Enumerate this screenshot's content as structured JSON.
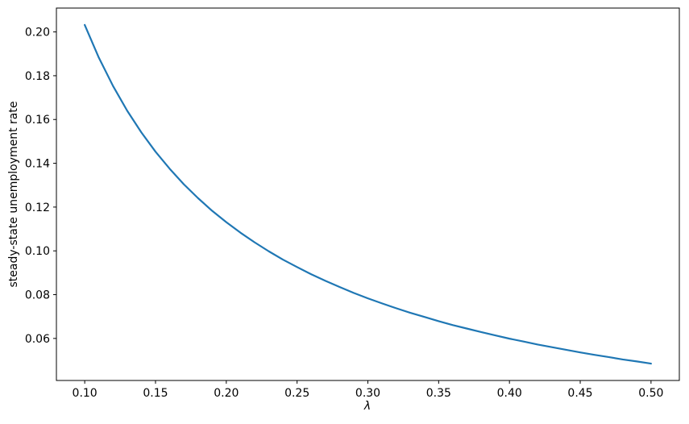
{
  "chart_data": {
    "type": "line",
    "title": "",
    "xlabel": "λ",
    "ylabel": "steady-state unemployment rate",
    "xlim": [
      0.08,
      0.52
    ],
    "ylim": [
      0.0408,
      0.2109
    ],
    "grid": false,
    "legend": "none",
    "background_color": "#ffffff",
    "axis_color": "#000000",
    "xticks": [
      0.1,
      0.15,
      0.2,
      0.25,
      0.3,
      0.35,
      0.4,
      0.45,
      0.5
    ],
    "xtick_labels": [
      "0.10",
      "0.15",
      "0.20",
      "0.25",
      "0.30",
      "0.35",
      "0.40",
      "0.45",
      "0.50"
    ],
    "yticks": [
      0.06,
      0.08,
      0.1,
      0.12,
      0.14,
      0.16,
      0.18,
      0.2
    ],
    "ytick_labels": [
      "0.06",
      "0.08",
      "0.10",
      "0.12",
      "0.14",
      "0.16",
      "0.18",
      "0.20"
    ],
    "x": [
      0.1,
      0.11,
      0.12,
      0.13,
      0.14,
      0.15,
      0.16,
      0.17,
      0.18,
      0.19,
      0.2,
      0.21,
      0.22,
      0.23,
      0.24,
      0.25,
      0.26,
      0.27,
      0.28,
      0.29,
      0.3,
      0.31,
      0.32,
      0.33,
      0.34,
      0.35,
      0.36,
      0.37,
      0.38,
      0.39,
      0.4,
      0.41,
      0.42,
      0.43,
      0.44,
      0.45,
      0.46,
      0.47,
      0.48,
      0.49,
      0.5
    ],
    "series": [
      {
        "name": "steady-state unemployment rate",
        "color": "#1f77b4",
        "line_width": 2.2,
        "values": [
          0.2032,
          0.1882,
          0.1753,
          0.164,
          0.1541,
          0.1453,
          0.1375,
          0.1304,
          0.1241,
          0.1183,
          0.1131,
          0.1083,
          0.1039,
          0.0998,
          0.096,
          0.0926,
          0.0893,
          0.0863,
          0.0835,
          0.0808,
          0.0783,
          0.076,
          0.0738,
          0.0717,
          0.0698,
          0.0679,
          0.0661,
          0.0645,
          0.0629,
          0.0614,
          0.0599,
          0.0586,
          0.0572,
          0.056,
          0.0548,
          0.0536,
          0.0525,
          0.0515,
          0.0504,
          0.0495,
          0.0485
        ]
      }
    ]
  }
}
